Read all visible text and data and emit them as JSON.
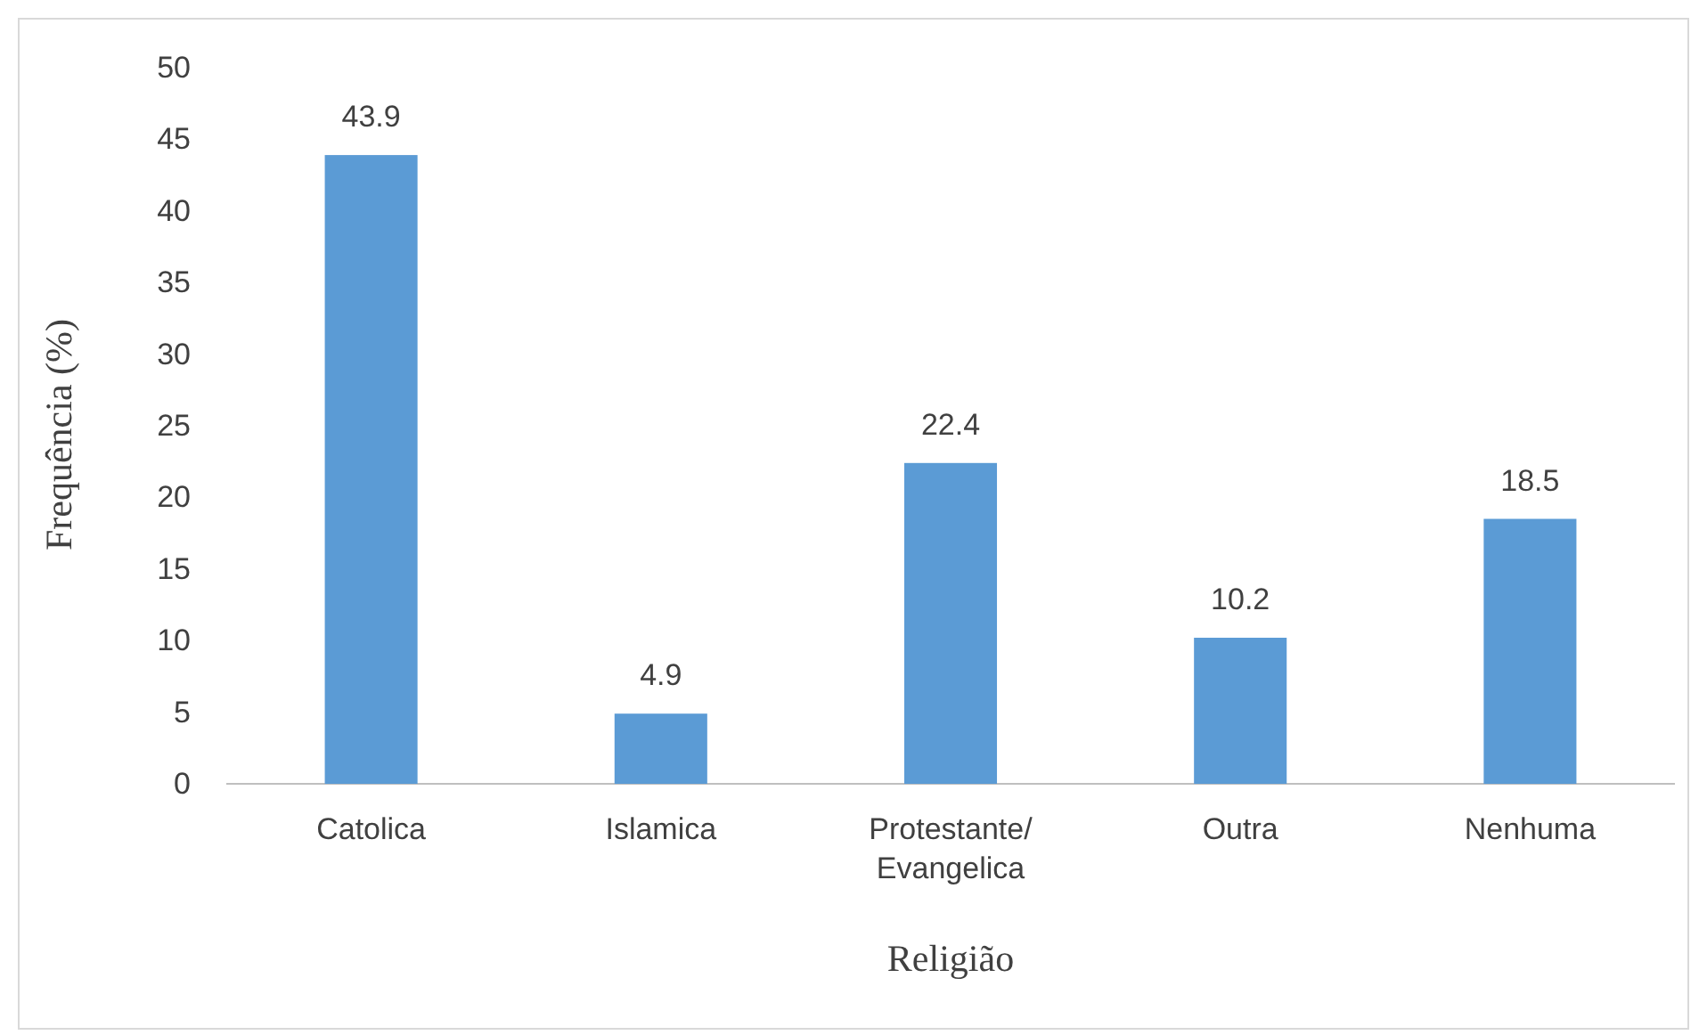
{
  "chart_data": {
    "type": "bar",
    "xlabel": "Religião",
    "ylabel": "Frequência (%)",
    "categories": [
      "Catolica",
      "Islamica",
      "Protestante/\nEvangelica",
      "Outra",
      "Nenhuma"
    ],
    "values": [
      43.9,
      4.9,
      22.4,
      10.2,
      18.5
    ],
    "color": "#5b9bd5",
    "ylim": [
      0,
      50
    ],
    "yticks": [
      0,
      5,
      10,
      15,
      20,
      25,
      30,
      35,
      40,
      45,
      50
    ],
    "grid": false,
    "data_labels": true
  }
}
